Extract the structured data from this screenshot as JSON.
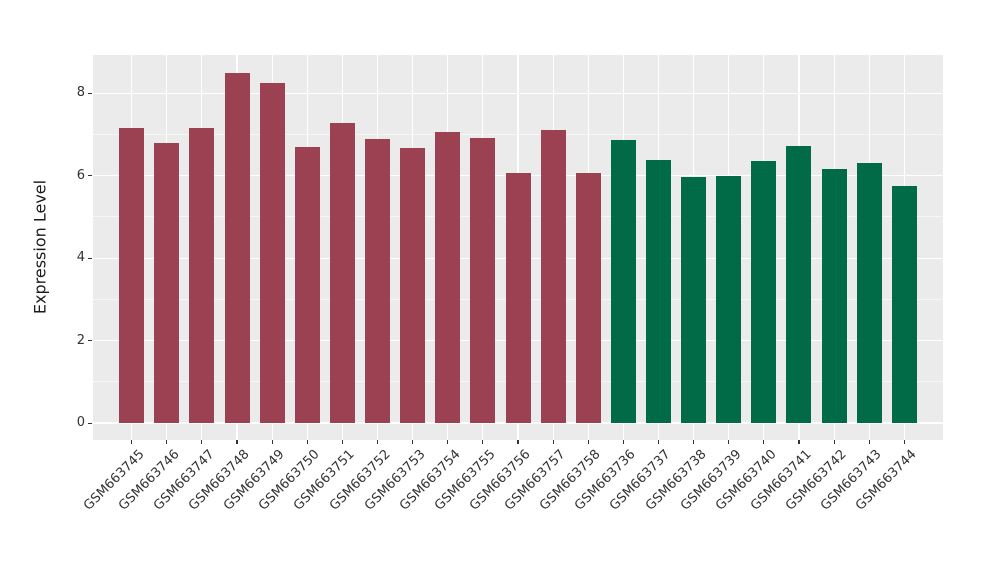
{
  "figure": {
    "background": "#FFFFFF"
  },
  "chart_data": {
    "type": "bar",
    "title": "",
    "xlabel": "",
    "ylabel": "Expression Level",
    "categories": [
      "GSM663745",
      "GSM663746",
      "GSM663747",
      "GSM663748",
      "GSM663749",
      "GSM663750",
      "GSM663751",
      "GSM663752",
      "GSM663753",
      "GSM663754",
      "GSM663755",
      "GSM663756",
      "GSM663757",
      "GSM663758",
      "GSM663736",
      "GSM663737",
      "GSM663738",
      "GSM663739",
      "GSM663740",
      "GSM663741",
      "GSM663742",
      "GSM663743",
      "GSM663744"
    ],
    "values": [
      7.15,
      6.8,
      7.15,
      8.49,
      8.26,
      6.7,
      7.27,
      6.89,
      6.68,
      7.06,
      6.92,
      6.06,
      7.12,
      6.06,
      6.86,
      6.38,
      5.96,
      6.0,
      6.37,
      6.72,
      6.16,
      6.31,
      5.74
    ],
    "bar_color_index": [
      0,
      0,
      0,
      0,
      0,
      0,
      0,
      0,
      0,
      0,
      0,
      0,
      0,
      0,
      1,
      1,
      1,
      1,
      1,
      1,
      1,
      1,
      1
    ],
    "palette": [
      "#9C4151",
      "#006B46"
    ],
    "ylim": [
      -0.41,
      8.93
    ],
    "yticks": [
      0,
      2,
      4,
      6,
      8
    ],
    "yticks_minor": [
      1,
      3,
      5,
      7
    ],
    "x_tick_rotation_deg": 45,
    "legend": "none",
    "grid": {
      "panel_background": "#EBEBEB",
      "gridline_color": "#FFFFFF",
      "horizontal": "major+minor",
      "vertical": "major at category centers"
    },
    "tick_color": "#333333",
    "text_color": "#333333"
  }
}
